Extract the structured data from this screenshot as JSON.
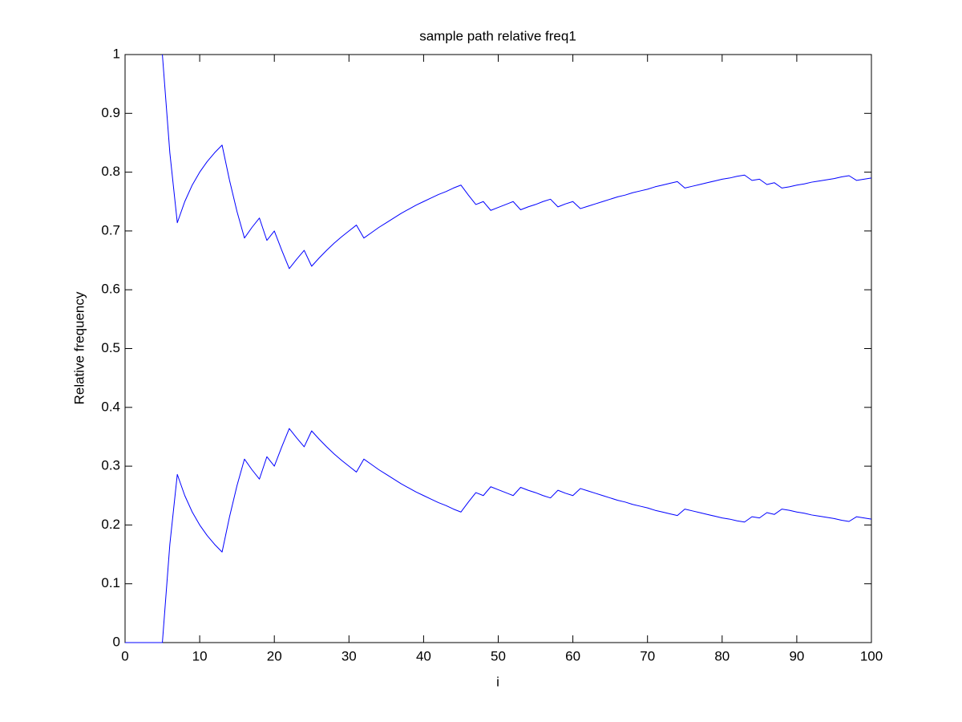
{
  "chart_data": {
    "type": "line",
    "title": "sample path relative freq1",
    "x_label": "i",
    "y_label": "Relative frequency",
    "x": [
      0,
      1,
      2,
      3,
      4,
      5,
      6,
      7,
      8,
      9,
      10,
      11,
      12,
      13,
      14,
      15,
      16,
      17,
      18,
      19,
      20,
      21,
      22,
      23,
      24,
      25,
      26,
      27,
      28,
      29,
      30,
      31,
      32,
      33,
      34,
      35,
      36,
      37,
      38,
      39,
      40,
      41,
      42,
      43,
      44,
      45,
      46,
      47,
      48,
      49,
      50,
      51,
      52,
      53,
      54,
      55,
      56,
      57,
      58,
      59,
      60,
      61,
      62,
      63,
      64,
      65,
      66,
      67,
      68,
      69,
      70,
      71,
      72,
      73,
      74,
      75,
      76,
      77,
      78,
      79,
      80,
      81,
      82,
      83,
      84,
      85,
      86,
      87,
      88,
      89,
      90,
      91,
      92,
      93,
      94,
      95,
      96,
      97,
      98,
      99,
      100
    ],
    "series": [
      {
        "color": "#0000ff",
        "values": [
          null,
          null,
          null,
          null,
          null,
          1,
          0.833,
          0.714,
          0.75,
          0.778,
          0.8,
          0.818,
          0.833,
          0.846,
          0.786,
          0.733,
          0.688,
          0.706,
          0.722,
          0.684,
          0.7,
          0.667,
          0.636,
          0.652,
          0.667,
          0.64,
          0.654,
          0.667,
          0.679,
          0.69,
          0.7,
          0.71,
          0.688,
          0.697,
          0.706,
          0.714,
          0.722,
          0.73,
          0.737,
          0.744,
          0.75,
          0.756,
          0.762,
          0.767,
          0.773,
          0.778,
          0.761,
          0.745,
          0.75,
          0.735,
          0.74,
          0.745,
          0.75,
          0.736,
          0.741,
          0.745,
          0.75,
          0.754,
          0.741,
          0.746,
          0.75,
          0.738,
          0.742,
          0.746,
          0.75,
          0.754,
          0.758,
          0.761,
          0.765,
          0.768,
          0.771,
          0.775,
          0.778,
          0.781,
          0.784,
          0.773,
          0.776,
          0.779,
          0.782,
          0.785,
          0.788,
          0.79,
          0.793,
          0.795,
          0.786,
          0.788,
          0.779,
          0.782,
          0.773,
          0.775,
          0.778,
          0.78,
          0.783,
          0.785,
          0.787,
          0.789,
          0.792,
          0.794,
          0.786,
          0.788,
          0.79
        ]
      },
      {
        "color": "#0000ff",
        "values": [
          0,
          0,
          0,
          0,
          0,
          0,
          0.167,
          0.286,
          0.25,
          0.222,
          0.2,
          0.182,
          0.167,
          0.154,
          0.214,
          0.267,
          0.312,
          0.294,
          0.278,
          0.316,
          0.3,
          0.333,
          0.364,
          0.348,
          0.333,
          0.36,
          0.346,
          0.333,
          0.321,
          0.31,
          0.3,
          0.29,
          0.312,
          0.303,
          0.294,
          0.286,
          0.278,
          0.27,
          0.263,
          0.256,
          0.25,
          0.244,
          0.238,
          0.233,
          0.227,
          0.222,
          0.239,
          0.255,
          0.25,
          0.265,
          0.26,
          0.255,
          0.25,
          0.264,
          0.259,
          0.255,
          0.25,
          0.246,
          0.259,
          0.254,
          0.25,
          0.262,
          0.258,
          0.254,
          0.25,
          0.246,
          0.242,
          0.239,
          0.235,
          0.232,
          0.229,
          0.225,
          0.222,
          0.219,
          0.216,
          0.227,
          0.224,
          0.221,
          0.218,
          0.215,
          0.212,
          0.21,
          0.207,
          0.205,
          0.214,
          0.212,
          0.221,
          0.218,
          0.227,
          0.225,
          0.222,
          0.22,
          0.217,
          0.215,
          0.213,
          0.211,
          0.208,
          0.206,
          0.214,
          0.212,
          0.21
        ]
      }
    ],
    "xlim": [
      0,
      100
    ],
    "ylim": [
      0,
      1
    ],
    "xticks": [
      0,
      10,
      20,
      30,
      40,
      50,
      60,
      70,
      80,
      90,
      100
    ],
    "yticks": [
      0,
      0.1,
      0.2,
      0.3,
      0.4,
      0.5,
      0.6,
      0.7,
      0.8,
      0.9,
      1
    ],
    "grid": false
  }
}
